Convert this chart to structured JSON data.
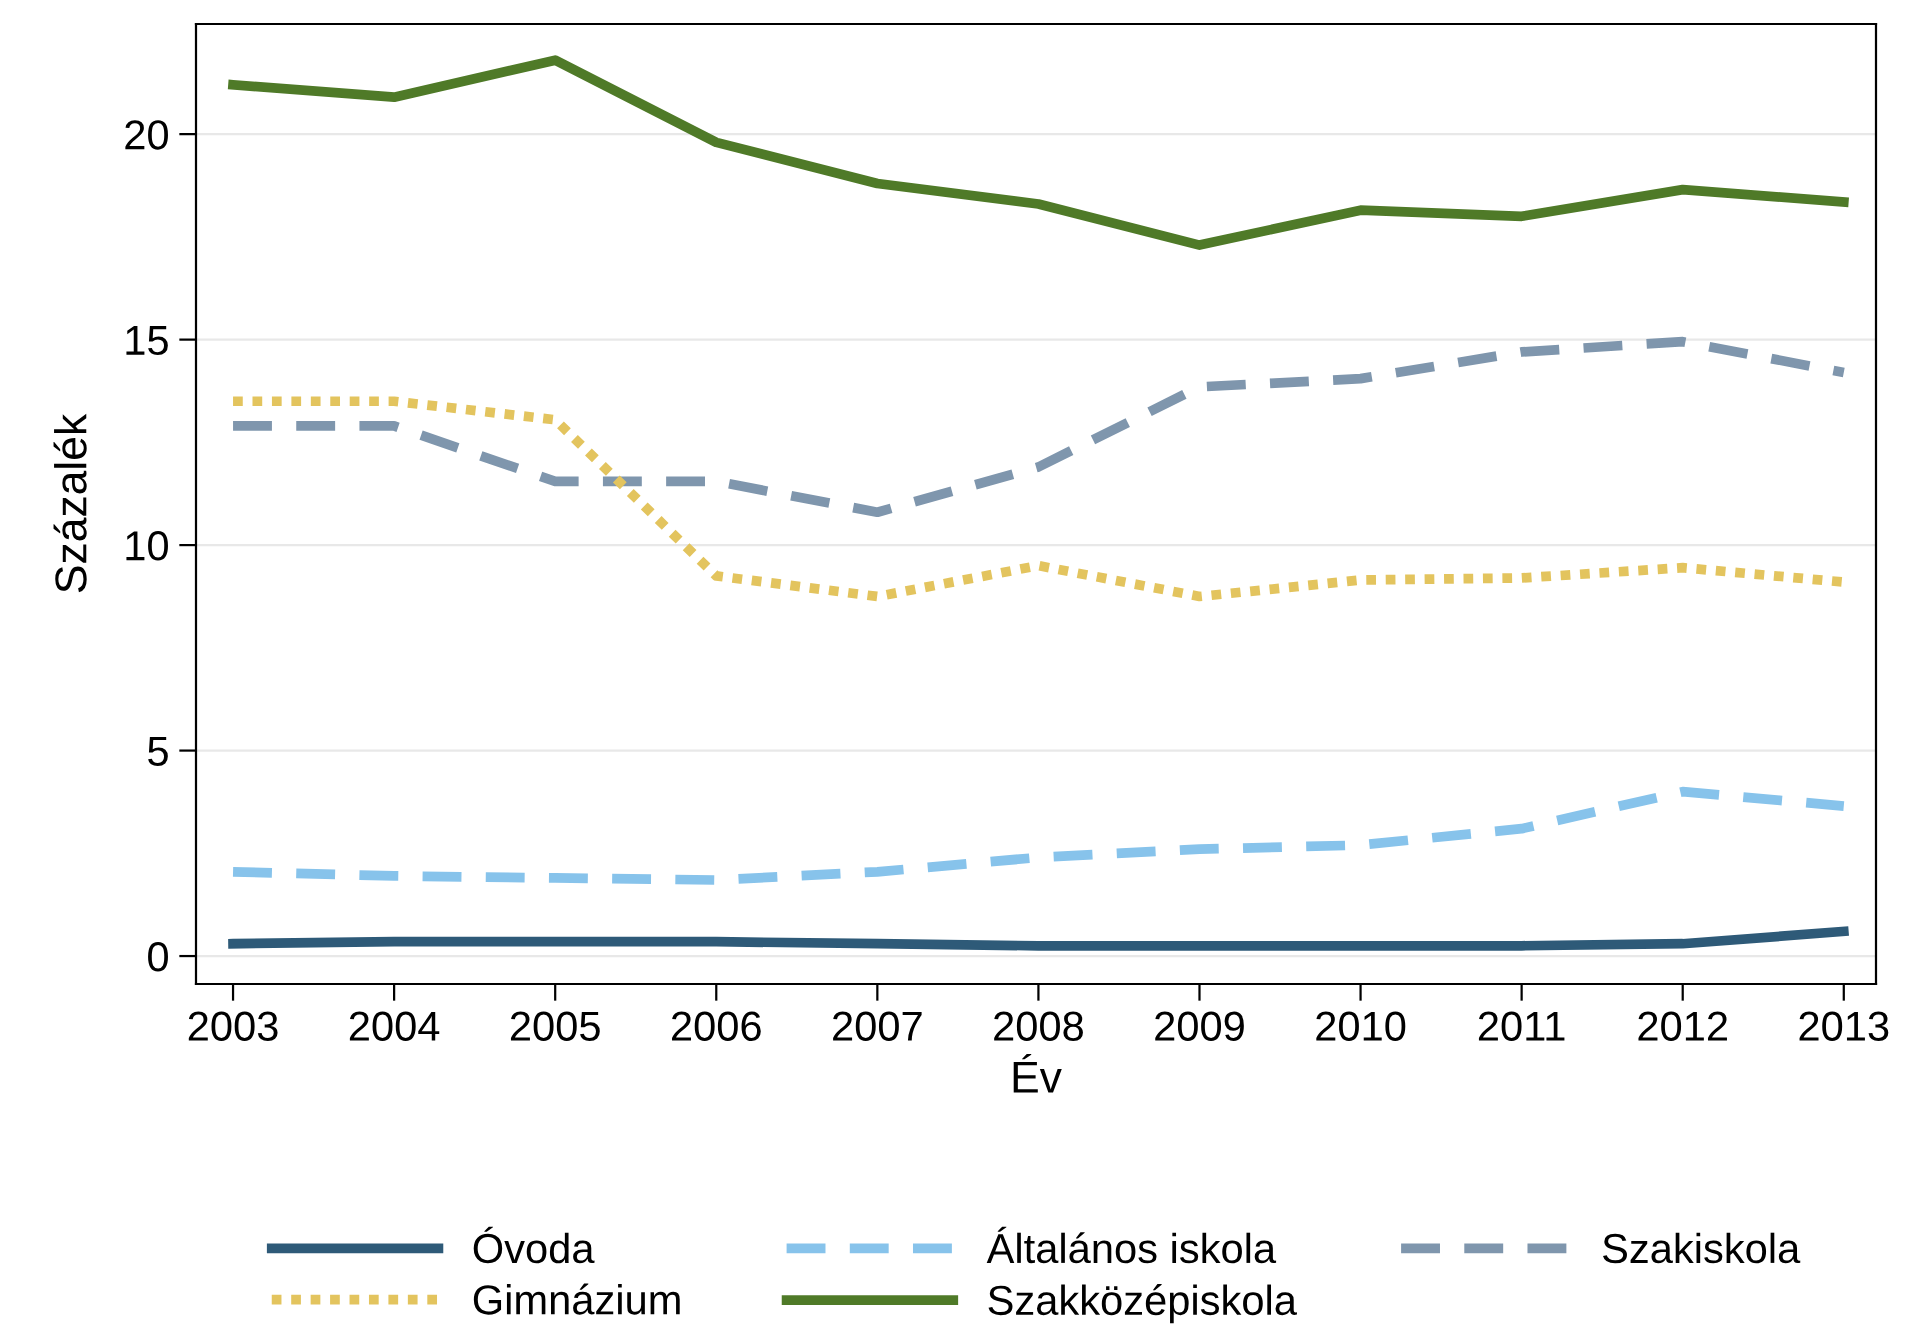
{
  "chart_data": {
    "type": "line",
    "xlabel": "Év",
    "ylabel": "Százalék",
    "x": [
      2003,
      2004,
      2005,
      2006,
      2007,
      2008,
      2009,
      2010,
      2011,
      2012,
      2013
    ],
    "xlim": [
      2002.77,
      2013.2
    ],
    "xticks": [
      2003,
      2004,
      2005,
      2006,
      2007,
      2008,
      2009,
      2010,
      2011,
      2012,
      2013
    ],
    "ylim": [
      -0.68,
      22.68
    ],
    "yticks": [
      0,
      5,
      10,
      15,
      20
    ],
    "grid": "y",
    "legend": "bottom",
    "marker": "none",
    "series": [
      {
        "name": "Óvoda",
        "color": "#2e5a78",
        "line_style": "solid",
        "values": [
          0.3,
          0.35,
          0.35,
          0.35,
          0.3,
          0.25,
          0.25,
          0.25,
          0.25,
          0.3,
          0.6
        ]
      },
      {
        "name": "Általános iskola",
        "color": "#87c3eb",
        "line_style": "dashed",
        "values": [
          2.05,
          1.95,
          1.9,
          1.85,
          2.05,
          2.4,
          2.6,
          2.7,
          3.1,
          4.0,
          3.65
        ]
      },
      {
        "name": "Szakiskola",
        "color": "#7f96ad",
        "line_style": "dashed",
        "values": [
          12.9,
          12.9,
          11.55,
          11.55,
          10.8,
          11.9,
          13.85,
          14.05,
          14.7,
          14.95,
          14.2
        ]
      },
      {
        "name": "Gimnázium",
        "color": "#e3c45e",
        "line_style": "dotted",
        "values": [
          13.5,
          13.5,
          13.05,
          9.25,
          8.75,
          9.5,
          8.75,
          9.15,
          9.2,
          9.45,
          9.1
        ]
      },
      {
        "name": "Szakközépiskola",
        "color": "#4f7a28",
        "line_style": "solid",
        "values": [
          21.2,
          20.9,
          21.8,
          19.8,
          18.8,
          18.3,
          17.3,
          18.15,
          18.0,
          18.65,
          18.35
        ]
      }
    ]
  }
}
